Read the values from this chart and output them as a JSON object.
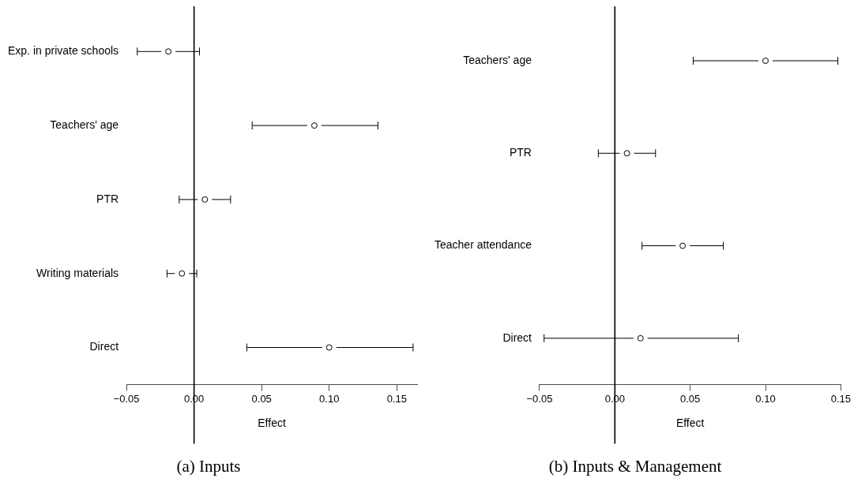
{
  "chart_data": [
    {
      "type": "scatter",
      "title": "(a) Inputs",
      "xlabel": "Effect",
      "orientation": "horizontal",
      "marker": "circle",
      "grid": false,
      "legend": false,
      "categories": [
        "Exp. in private schools",
        "Teachers' age",
        "PTR",
        "Writing materials",
        "Direct"
      ],
      "series": [
        {
          "color": "#000000",
          "values": [
            -0.019,
            0.089,
            0.008,
            -0.009,
            0.1
          ],
          "errors": [
            [
              -0.042,
              0.004
            ],
            [
              0.043,
              0.136
            ],
            [
              -0.011,
              0.027
            ],
            [
              -0.02,
              0.002
            ],
            [
              0.039,
              0.162
            ]
          ]
        }
      ],
      "xlim": [
        -0.05,
        0.165
      ],
      "xticks": [
        {
          "value": -0.05,
          "label": "−0.05"
        },
        {
          "value": 0,
          "label": "0.00"
        },
        {
          "value": 0.05,
          "label": "0.05"
        },
        {
          "value": 0.1,
          "label": "0.10"
        },
        {
          "value": 0.15,
          "label": "0.15"
        }
      ],
      "ref_lines": [
        {
          "axis": "x",
          "value": 0,
          "color": "#000000"
        }
      ]
    },
    {
      "type": "scatter",
      "title": "(b) Inputs & Management",
      "xlabel": "Effect",
      "orientation": "horizontal",
      "marker": "circle",
      "grid": false,
      "legend": false,
      "categories": [
        "Teachers' age",
        "PTR",
        "Teacher attendance",
        "Direct"
      ],
      "series": [
        {
          "color": "#000000",
          "values": [
            0.1,
            0.008,
            0.045,
            0.017
          ],
          "errors": [
            [
              0.052,
              0.148
            ],
            [
              -0.011,
              0.027
            ],
            [
              0.018,
              0.072
            ],
            [
              -0.047,
              0.082
            ]
          ]
        }
      ],
      "xlim": [
        -0.05,
        0.15
      ],
      "xticks": [
        {
          "value": -0.05,
          "label": "−0.05"
        },
        {
          "value": 0,
          "label": "0.00"
        },
        {
          "value": 0.05,
          "label": "0.05"
        },
        {
          "value": 0.1,
          "label": "0.10"
        },
        {
          "value": 0.15,
          "label": "0.15"
        }
      ],
      "ref_lines": [
        {
          "axis": "x",
          "value": 0,
          "color": "#000000"
        }
      ]
    }
  ]
}
